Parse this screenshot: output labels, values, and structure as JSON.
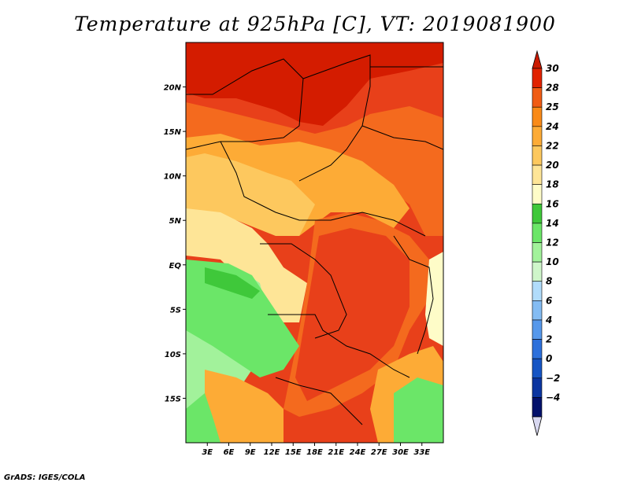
{
  "title": "Temperature at 925hPa [C], VT: 2019081900",
  "footer": "GrADS: IGES/COLA",
  "map": {
    "lon_range": [
      0,
      36
    ],
    "lat_range": [
      -20,
      25
    ],
    "x_ticks": [
      "3E",
      "6E",
      "9E",
      "12E",
      "15E",
      "18E",
      "21E",
      "24E",
      "27E",
      "30E",
      "33E"
    ],
    "y_ticks": [
      "20N",
      "15N",
      "10N",
      "5N",
      "EQ",
      "5S",
      "10S",
      "15S"
    ]
  },
  "colorbar": {
    "labels": [
      "30",
      "28",
      "25",
      "24",
      "22",
      "20",
      "18",
      "16",
      "14",
      "12",
      "10",
      "8",
      "6",
      "4",
      "2",
      "0",
      "−2",
      "−4"
    ],
    "colors": [
      "#e12200",
      "#f05c14",
      "#f98a18",
      "#fdab36",
      "#fdc85e",
      "#fee597",
      "#fefcc8",
      "#3fc83a",
      "#6be668",
      "#a2f29b",
      "#cff6ca",
      "#b1dcfb",
      "#84bcf3",
      "#5698eb",
      "#2d70db",
      "#1655c4",
      "#0b35a0",
      "#03116b"
    ],
    "top_arrow_color": "#cb1a00",
    "bottom_arrow_color": "#d8d8f0"
  },
  "map_colors": {
    "t30": "#d41c00",
    "t28": "#e8401a",
    "t25": "#f46a1e",
    "t24": "#f98a18",
    "t22": "#fdab36",
    "t20": "#fdc85e",
    "t18": "#fee597",
    "t16": "#fefcc8",
    "t14": "#6be668",
    "t12": "#a2f29b",
    "t10": "#3fc83a"
  }
}
